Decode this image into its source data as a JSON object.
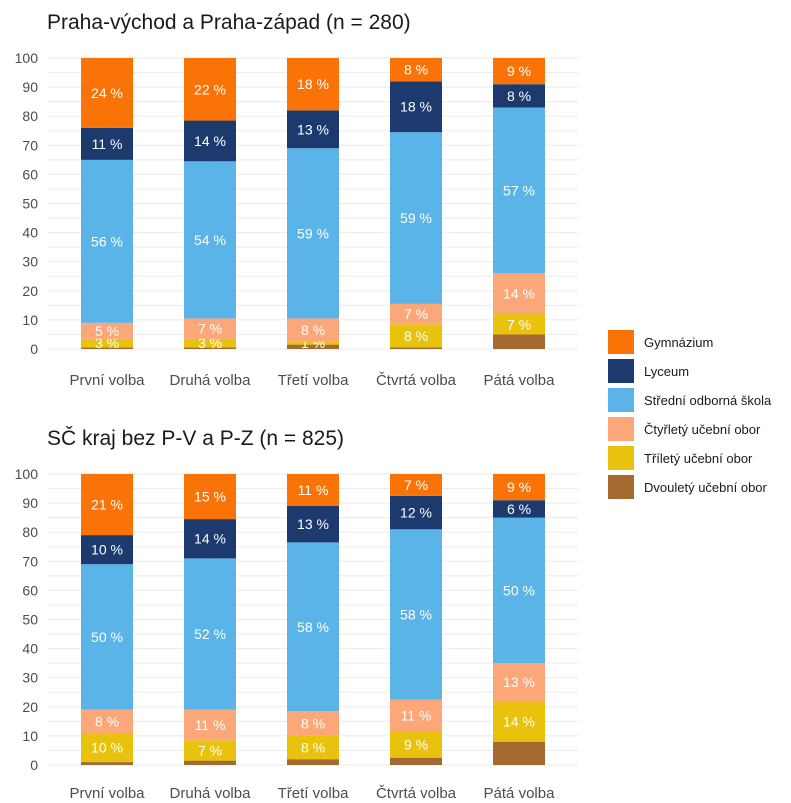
{
  "legend": [
    {
      "label": "Gymnázium",
      "color": "#F97306"
    },
    {
      "label": "Lyceum",
      "color": "#1C3A6E"
    },
    {
      "label": "Střední odborná škola",
      "color": "#5AB4E8"
    },
    {
      "label": "Čtyřletý učební obor",
      "color": "#FBA779"
    },
    {
      "label": "Tříletý učební obor",
      "color": "#E8C20C"
    },
    {
      "label": "Dvouletý učební obor",
      "color": "#A56A32"
    }
  ],
  "chart_data": [
    {
      "type": "bar",
      "stacked": true,
      "title": "Praha-východ a Praha-západ (n = 280)",
      "categories": [
        "První volba",
        "Druhá volba",
        "Třetí volba",
        "Čtvrtá volba",
        "Pátá volba"
      ],
      "ylim": [
        0,
        100
      ],
      "yticks": [
        0,
        10,
        20,
        30,
        40,
        50,
        60,
        70,
        80,
        90,
        100
      ],
      "series": [
        {
          "name": "Dvouletý učební obor",
          "values": [
            0.5,
            0.5,
            1.5,
            0.5,
            5
          ],
          "labels": [
            "",
            "",
            "",
            "",
            ""
          ]
        },
        {
          "name": "Tříletý učební obor",
          "values": [
            3,
            3,
            1,
            8,
            7
          ],
          "labels": [
            "3 %",
            "3 %",
            "1 %",
            "8 %",
            "7 %"
          ]
        },
        {
          "name": "Čtyřletý učební obor",
          "values": [
            5.5,
            7,
            8,
            7,
            14
          ],
          "labels": [
            "5 %",
            "7 %",
            "8 %",
            "7 %",
            "14 %"
          ]
        },
        {
          "name": "Střední odborná škola",
          "values": [
            56,
            54,
            58.5,
            59,
            57
          ],
          "labels": [
            "56 %",
            "54 %",
            "59 %",
            "59 %",
            "57 %"
          ]
        },
        {
          "name": "Lyceum",
          "values": [
            11,
            14,
            13,
            17.5,
            8
          ],
          "labels": [
            "11 %",
            "14 %",
            "13 %",
            "18 %",
            "8 %"
          ]
        },
        {
          "name": "Gymnázium",
          "values": [
            24,
            21.5,
            18,
            8,
            9
          ],
          "labels": [
            "24 %",
            "22 %",
            "18 %",
            "8 %",
            "9 %"
          ]
        }
      ]
    },
    {
      "type": "bar",
      "stacked": true,
      "title": "SČ kraj bez P-V a P-Z (n = 825)",
      "categories": [
        "První volba",
        "Druhá volba",
        "Třetí volba",
        "Čtvrtá volba",
        "Pátá volba"
      ],
      "ylim": [
        0,
        100
      ],
      "yticks": [
        0,
        10,
        20,
        30,
        40,
        50,
        60,
        70,
        80,
        90,
        100
      ],
      "series": [
        {
          "name": "Dvouletý učební obor",
          "values": [
            1,
            1.5,
            2,
            2.5,
            8
          ],
          "labels": [
            "",
            "",
            "",
            "",
            ""
          ]
        },
        {
          "name": "Tříletý učební obor",
          "values": [
            10,
            7,
            8,
            9,
            14
          ],
          "labels": [
            "10 %",
            "7 %",
            "8 %",
            "9 %",
            "14 %"
          ]
        },
        {
          "name": "Čtyřletý učební obor",
          "values": [
            8,
            10.5,
            8.5,
            11,
            13
          ],
          "labels": [
            "8 %",
            "11 %",
            "8 %",
            "11 %",
            "13 %"
          ]
        },
        {
          "name": "Střední odborná škola",
          "values": [
            50,
            52,
            58,
            58.5,
            50
          ],
          "labels": [
            "50 %",
            "52 %",
            "58 %",
            "58 %",
            "50 %"
          ]
        },
        {
          "name": "Lyceum",
          "values": [
            10,
            13.5,
            12.5,
            11.5,
            6
          ],
          "labels": [
            "10 %",
            "14 %",
            "13 %",
            "12 %",
            "6 %"
          ]
        },
        {
          "name": "Gymnázium",
          "values": [
            21,
            15.5,
            11,
            7.5,
            9
          ],
          "labels": [
            "21 %",
            "15 %",
            "11 %",
            "7 %",
            "9 %"
          ]
        }
      ]
    }
  ]
}
